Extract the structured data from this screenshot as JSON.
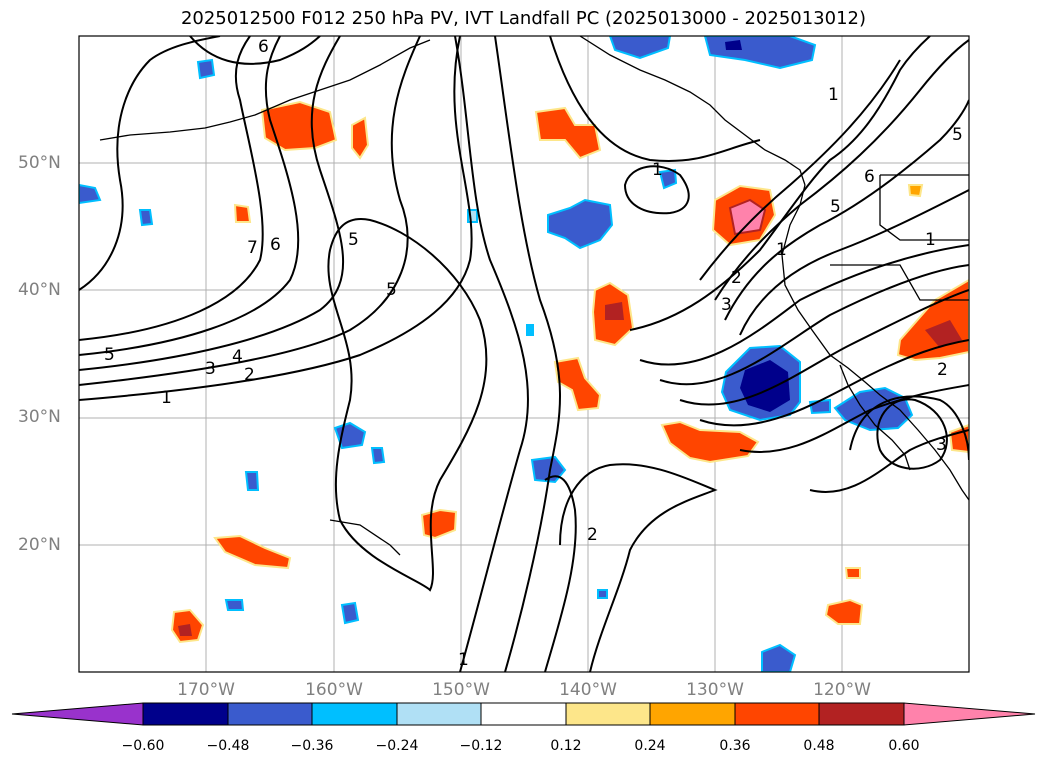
{
  "title": "2025012500 F012 250 hPa PV, IVT Landfall PC (2025013000 - 2025013012)",
  "map": {
    "lat_labels": [
      "50°N",
      "40°N",
      "30°N",
      "20°N"
    ],
    "lon_labels": [
      "170°W",
      "160°W",
      "150°W",
      "140°W",
      "130°W",
      "120°W"
    ],
    "contour_labels": [
      "6",
      "7",
      "6",
      "5",
      "5",
      "5",
      "4",
      "3",
      "2",
      "1",
      "1",
      "1",
      "2",
      "3",
      "5",
      "6",
      "1",
      "1",
      "5",
      "2",
      "3",
      "2",
      "1"
    ]
  },
  "colorbar": {
    "ticks": [
      "−0.60",
      "−0.48",
      "−0.36",
      "−0.24",
      "−0.12",
      "0.12",
      "0.24",
      "0.36",
      "0.48",
      "0.60"
    ],
    "colors": [
      "#9932cc",
      "#00008b",
      "#3a5bcd",
      "#00bfff",
      "#b0e0f5",
      "#ffffff",
      "#fde68a",
      "#ffa500",
      "#ff4500",
      "#b22222",
      "#ff82ab"
    ]
  },
  "colors": {
    "land_outline": "#000000",
    "grid": "#b0b0b0",
    "contour": "#000000"
  }
}
